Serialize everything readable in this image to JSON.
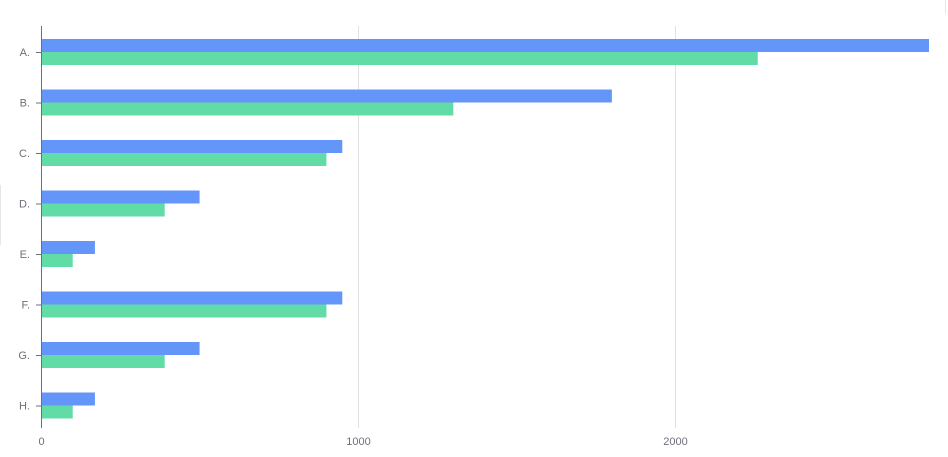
{
  "chart_data": {
    "type": "bar",
    "orientation": "horizontal",
    "categories": [
      "A.",
      "B.",
      "C.",
      "D.",
      "E.",
      "F.",
      "G.",
      "H."
    ],
    "series": [
      {
        "values": [
          2800,
          1800,
          950,
          500,
          170,
          950,
          500,
          170
        ],
        "color": "#6495f9"
      },
      {
        "values": [
          2260,
          1300,
          900,
          390,
          100,
          900,
          390,
          100
        ],
        "color": "#62dca7"
      }
    ],
    "x_ticks": [
      "0",
      "1000",
      "2000"
    ],
    "xlim": [
      0,
      2800
    ],
    "grid": true,
    "title": "",
    "xlabel": "",
    "ylabel": ""
  }
}
